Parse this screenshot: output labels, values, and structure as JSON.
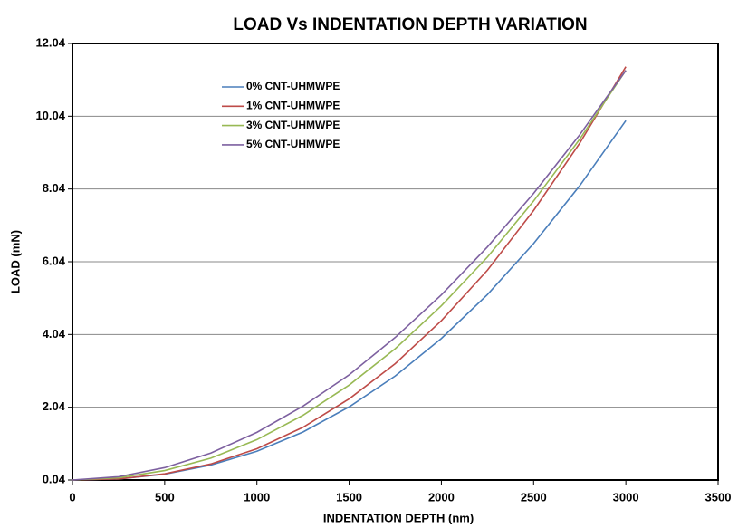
{
  "chart_data": {
    "type": "line",
    "title": "LOAD Vs INDENTATION DEPTH VARIATION",
    "x_label": "INDENTATION  DEPTH (nm)",
    "y_label": "LOAD (mN)",
    "x": [
      0,
      250,
      500,
      750,
      1000,
      1250,
      1500,
      1750,
      2000,
      2250,
      2500,
      2750,
      3000
    ],
    "series": [
      {
        "name": "0% CNT-UHMWPE",
        "color": "#4a7ebb",
        "values": [
          0.04,
          0.07,
          0.2,
          0.45,
          0.83,
          1.36,
          2.05,
          2.9,
          3.93,
          5.14,
          6.54,
          8.13,
          9.92
        ]
      },
      {
        "name": "1% CNT-UHMWPE",
        "color": "#be4b48",
        "values": [
          0.04,
          0.07,
          0.21,
          0.48,
          0.9,
          1.49,
          2.27,
          3.24,
          4.42,
          5.81,
          7.45,
          9.3,
          11.4
        ]
      },
      {
        "name": "3% CNT-UHMWPE",
        "color": "#98b954",
        "values": [
          0.04,
          0.1,
          0.3,
          0.64,
          1.15,
          1.82,
          2.65,
          3.65,
          4.83,
          6.17,
          7.71,
          9.41,
          11.3
        ]
      },
      {
        "name": "5% CNT-UHMWPE",
        "color": "#7d60a0",
        "values": [
          0.04,
          0.13,
          0.38,
          0.78,
          1.35,
          2.07,
          2.93,
          3.96,
          5.13,
          6.45,
          7.92,
          9.53,
          11.3
        ]
      }
    ],
    "xlim": [
      0,
      3500
    ],
    "xticks": [
      0,
      500,
      1000,
      1500,
      2000,
      2500,
      3000,
      3500
    ],
    "ylim": [
      0.04,
      12.04
    ],
    "yticks": [
      0.04,
      2.04,
      4.04,
      6.04,
      8.04,
      10.04,
      12.04
    ],
    "grid": true,
    "legend": "upper left"
  }
}
